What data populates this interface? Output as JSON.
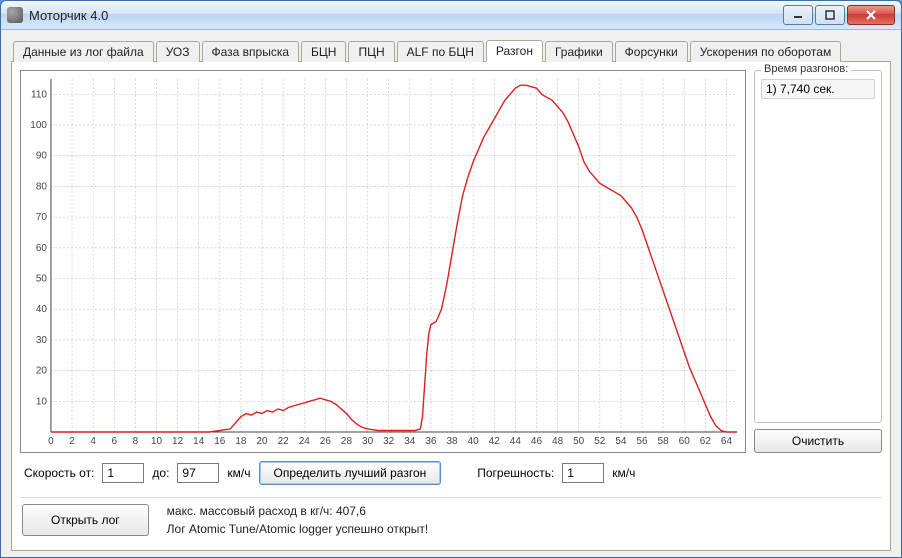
{
  "window": {
    "title": "Моторчик 4.0"
  },
  "tabs": [
    {
      "label": "Данные из лог файла"
    },
    {
      "label": "УОЗ"
    },
    {
      "label": "Фаза впрыска"
    },
    {
      "label": "БЦН"
    },
    {
      "label": "ПЦН"
    },
    {
      "label": "ALF по БЦН"
    },
    {
      "label": "Разгон",
      "active": true
    },
    {
      "label": "Графики"
    },
    {
      "label": "Форсунки"
    },
    {
      "label": "Ускорения по оборотам"
    }
  ],
  "chart": {
    "type": "line",
    "line_color": "#dc1f1f",
    "line_width": 1.4,
    "background_color": "#ffffff",
    "grid_color": "#bfbfbf",
    "grid_dash": "2,2",
    "axis_color": "#444444",
    "tick_fontsize": 10,
    "xlim": [
      0,
      65
    ],
    "ylim": [
      0,
      115
    ],
    "xtick_step": 2,
    "ytick_step": 10,
    "series": [
      {
        "x": 0,
        "y": 0
      },
      {
        "x": 2,
        "y": 0
      },
      {
        "x": 4,
        "y": 0
      },
      {
        "x": 6,
        "y": 0
      },
      {
        "x": 8,
        "y": 0
      },
      {
        "x": 10,
        "y": 0
      },
      {
        "x": 12,
        "y": 0
      },
      {
        "x": 14,
        "y": 0
      },
      {
        "x": 15,
        "y": 0
      },
      {
        "x": 16,
        "y": 0.5
      },
      {
        "x": 17,
        "y": 1
      },
      {
        "x": 17.5,
        "y": 3
      },
      {
        "x": 18,
        "y": 5
      },
      {
        "x": 18.5,
        "y": 6
      },
      {
        "x": 19,
        "y": 5.5
      },
      {
        "x": 19.5,
        "y": 6.5
      },
      {
        "x": 20,
        "y": 6
      },
      {
        "x": 20.5,
        "y": 7
      },
      {
        "x": 21,
        "y": 6.5
      },
      {
        "x": 21.5,
        "y": 7.5
      },
      {
        "x": 22,
        "y": 7
      },
      {
        "x": 22.5,
        "y": 8
      },
      {
        "x": 23,
        "y": 8.5
      },
      {
        "x": 23.5,
        "y": 9
      },
      {
        "x": 24,
        "y": 9.5
      },
      {
        "x": 24.5,
        "y": 10
      },
      {
        "x": 25,
        "y": 10.5
      },
      {
        "x": 25.5,
        "y": 11
      },
      {
        "x": 26,
        "y": 10.5
      },
      {
        "x": 26.5,
        "y": 10
      },
      {
        "x": 27,
        "y": 9
      },
      {
        "x": 27.5,
        "y": 7.5
      },
      {
        "x": 28,
        "y": 6
      },
      {
        "x": 28.5,
        "y": 4
      },
      {
        "x": 29,
        "y": 2.5
      },
      {
        "x": 29.5,
        "y": 1.5
      },
      {
        "x": 30,
        "y": 1
      },
      {
        "x": 31,
        "y": 0.5
      },
      {
        "x": 32,
        "y": 0.5
      },
      {
        "x": 33,
        "y": 0.5
      },
      {
        "x": 34,
        "y": 0.5
      },
      {
        "x": 34.5,
        "y": 0.5
      },
      {
        "x": 35,
        "y": 1
      },
      {
        "x": 35.2,
        "y": 5
      },
      {
        "x": 35.4,
        "y": 15
      },
      {
        "x": 35.6,
        "y": 25
      },
      {
        "x": 35.8,
        "y": 32
      },
      {
        "x": 36,
        "y": 35
      },
      {
        "x": 36.5,
        "y": 36
      },
      {
        "x": 37,
        "y": 40
      },
      {
        "x": 37.5,
        "y": 48
      },
      {
        "x": 38,
        "y": 58
      },
      {
        "x": 38.5,
        "y": 68
      },
      {
        "x": 39,
        "y": 77
      },
      {
        "x": 39.5,
        "y": 83
      },
      {
        "x": 40,
        "y": 88
      },
      {
        "x": 40.5,
        "y": 92
      },
      {
        "x": 41,
        "y": 96
      },
      {
        "x": 41.5,
        "y": 99
      },
      {
        "x": 42,
        "y": 102
      },
      {
        "x": 42.5,
        "y": 105
      },
      {
        "x": 43,
        "y": 108
      },
      {
        "x": 43.5,
        "y": 110
      },
      {
        "x": 44,
        "y": 112
      },
      {
        "x": 44.5,
        "y": 113
      },
      {
        "x": 45,
        "y": 113
      },
      {
        "x": 45.5,
        "y": 112.5
      },
      {
        "x": 46,
        "y": 112
      },
      {
        "x": 46.5,
        "y": 110
      },
      {
        "x": 47,
        "y": 109
      },
      {
        "x": 47.5,
        "y": 108
      },
      {
        "x": 48,
        "y": 106
      },
      {
        "x": 48.5,
        "y": 104
      },
      {
        "x": 49,
        "y": 101
      },
      {
        "x": 49.5,
        "y": 97
      },
      {
        "x": 50,
        "y": 93
      },
      {
        "x": 50.5,
        "y": 88
      },
      {
        "x": 51,
        "y": 85
      },
      {
        "x": 51.5,
        "y": 83
      },
      {
        "x": 52,
        "y": 81
      },
      {
        "x": 52.5,
        "y": 80
      },
      {
        "x": 53,
        "y": 79
      },
      {
        "x": 53.5,
        "y": 78
      },
      {
        "x": 54,
        "y": 77
      },
      {
        "x": 54.5,
        "y": 75
      },
      {
        "x": 55,
        "y": 73
      },
      {
        "x": 55.5,
        "y": 70
      },
      {
        "x": 56,
        "y": 66
      },
      {
        "x": 56.5,
        "y": 61
      },
      {
        "x": 57,
        "y": 56
      },
      {
        "x": 57.5,
        "y": 51
      },
      {
        "x": 58,
        "y": 46
      },
      {
        "x": 58.5,
        "y": 41
      },
      {
        "x": 59,
        "y": 36
      },
      {
        "x": 59.5,
        "y": 31
      },
      {
        "x": 60,
        "y": 26
      },
      {
        "x": 60.5,
        "y": 21
      },
      {
        "x": 61,
        "y": 17
      },
      {
        "x": 61.5,
        "y": 13
      },
      {
        "x": 62,
        "y": 9
      },
      {
        "x": 62.5,
        "y": 5
      },
      {
        "x": 63,
        "y": 2
      },
      {
        "x": 63.5,
        "y": 0.5
      },
      {
        "x": 64,
        "y": 0
      },
      {
        "x": 65,
        "y": 0
      }
    ]
  },
  "side": {
    "group_title": "Время разгонов:",
    "items": [
      "1) 7,740 сек."
    ],
    "clear_button": "Очистить"
  },
  "controls": {
    "speed_from_label": "Скорость от:",
    "speed_from_value": "1",
    "to_label": "до:",
    "speed_to_value": "97",
    "unit": "км/ч",
    "find_best_button": "Определить лучший разгон",
    "error_label": "Погрешность:",
    "error_value": "1"
  },
  "bottom": {
    "open_log_button": "Открыть лог",
    "line1": "макс. массовый расход в кг/ч: 407,6",
    "line2": "Лог Atomic Tune/Atomic logger успешно открыт!"
  }
}
